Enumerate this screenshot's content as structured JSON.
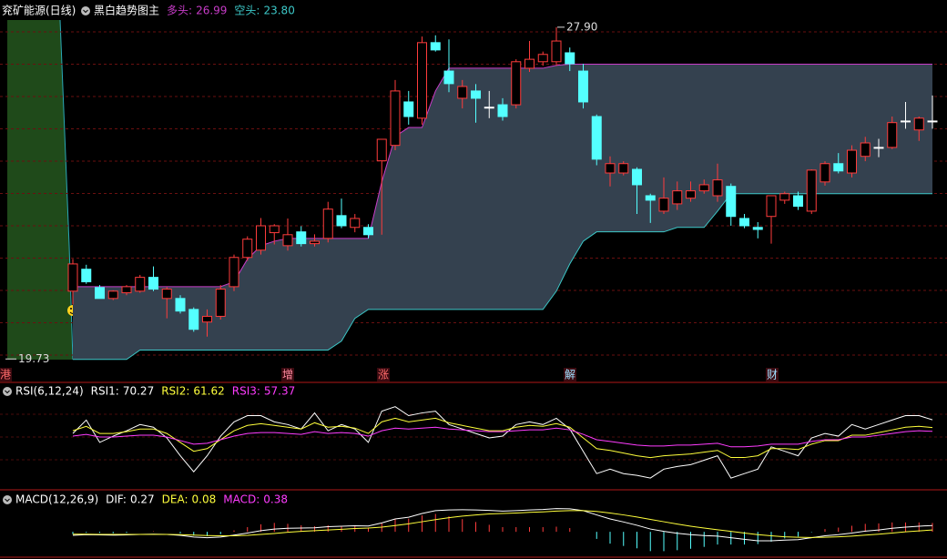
{
  "header": {
    "title": "兖矿能源(日线)"
  },
  "chart_data": [
    {
      "type": "candlestick",
      "title": "黑白趋势图主",
      "up_color": "#ff3c3c",
      "down_color": "#54ffff",
      "flat_color": "#ffffff",
      "ylim": [
        19.4,
        28.2
      ],
      "legend": [
        {
          "name": "多头:",
          "color": "#c83cc8",
          "value": 26.99
        },
        {
          "name": "空头:",
          "color": "#3cc8c8",
          "value": {
            "value": 23.8,
            "label": "23.80"
          }
        }
      ],
      "annotations": [
        {
          "value": 27.9,
          "label": "27.90"
        },
        {
          "value": 19.73,
          "label": "19.73"
        }
      ],
      "events": [
        "港",
        "增",
        "涨",
        "解",
        "财"
      ],
      "ohlc": [
        [
          21.4,
          22.19,
          21.07,
          22.07
        ],
        [
          21.94,
          22.05,
          21.58,
          21.63
        ],
        [
          21.49,
          21.55,
          21.3,
          21.22
        ],
        [
          21.22,
          21.42,
          21.18,
          21.4
        ],
        [
          21.36,
          21.55,
          21.3,
          21.51
        ],
        [
          21.4,
          21.8,
          21.36,
          21.74
        ],
        [
          21.74,
          22.01,
          21.4,
          21.45
        ],
        [
          21.22,
          21.5,
          20.73,
          21.45
        ],
        [
          21.22,
          21.3,
          20.85,
          20.91
        ],
        [
          20.95,
          21.0,
          20.4,
          20.46
        ],
        [
          20.64,
          20.95,
          20.28,
          20.78
        ],
        [
          20.78,
          21.55,
          20.7,
          21.45
        ],
        [
          21.51,
          22.3,
          21.4,
          22.23
        ],
        [
          22.23,
          22.75,
          22.15,
          22.68
        ],
        [
          22.41,
          23.2,
          22.3,
          23.01
        ],
        [
          22.84,
          23.05,
          22.55,
          23.01
        ],
        [
          22.52,
          23.19,
          22.4,
          22.79
        ],
        [
          22.86,
          23.0,
          22.5,
          22.57
        ],
        [
          22.57,
          22.8,
          22.5,
          22.63
        ],
        [
          22.7,
          23.6,
          22.6,
          23.42
        ],
        [
          23.26,
          23.68,
          22.95,
          23.01
        ],
        [
          22.97,
          23.3,
          22.85,
          23.19
        ],
        [
          22.97,
          23.05,
          22.7,
          22.79
        ],
        [
          24.61,
          25.14,
          22.79,
          25.14
        ],
        [
          24.99,
          26.6,
          24.87,
          26.33
        ],
        [
          26.06,
          26.33,
          25.5,
          25.7
        ],
        [
          25.66,
          27.67,
          25.5,
          27.52
        ],
        [
          27.52,
          27.7,
          27.3,
          27.34
        ],
        [
          26.82,
          27.6,
          26.3,
          26.51
        ],
        [
          26.15,
          26.6,
          25.9,
          26.44
        ],
        [
          26.33,
          26.5,
          25.55,
          26.15
        ],
        [
          25.93,
          26.33,
          25.66,
          25.93
        ],
        [
          25.99,
          26.15,
          25.6,
          25.7
        ],
        [
          25.99,
          27.11,
          25.9,
          27.05
        ],
        [
          26.89,
          27.56,
          26.8,
          27.11
        ],
        [
          27.05,
          27.3,
          26.95,
          27.23
        ],
        [
          27.05,
          27.9,
          26.95,
          27.56
        ],
        [
          27.27,
          27.4,
          26.82,
          27.0
        ],
        [
          26.82,
          27.0,
          25.9,
          26.06
        ],
        [
          25.7,
          25.75,
          24.5,
          24.65
        ],
        [
          24.31,
          24.72,
          23.98,
          24.54
        ],
        [
          24.31,
          24.6,
          24.25,
          24.54
        ],
        [
          24.4,
          24.45,
          23.3,
          24.02
        ],
        [
          23.75,
          23.8,
          23.08,
          23.64
        ],
        [
          23.37,
          24.2,
          23.3,
          23.69
        ],
        [
          23.55,
          24.1,
          23.4,
          23.87
        ],
        [
          23.69,
          24.1,
          23.6,
          23.87
        ],
        [
          23.87,
          24.15,
          23.8,
          24.02
        ],
        [
          23.75,
          24.54,
          23.6,
          24.14
        ],
        [
          23.98,
          24.05,
          23.01,
          23.24
        ],
        [
          23.19,
          23.3,
          22.95,
          23.01
        ],
        [
          22.97,
          23.1,
          22.7,
          22.92
        ],
        [
          23.24,
          23.75,
          22.57,
          23.75
        ],
        [
          23.64,
          23.85,
          23.55,
          23.8
        ],
        [
          23.75,
          23.85,
          23.4,
          23.49
        ],
        [
          23.37,
          24.4,
          23.3,
          24.38
        ],
        [
          24.09,
          24.6,
          24.0,
          24.54
        ],
        [
          24.54,
          24.8,
          24.3,
          24.36
        ],
        [
          24.31,
          24.99,
          24.2,
          24.87
        ],
        [
          24.72,
          25.2,
          24.6,
          25.05
        ],
        [
          24.94,
          25.15,
          24.7,
          24.94
        ],
        [
          24.94,
          25.7,
          24.9,
          25.55
        ],
        [
          25.59,
          26.06,
          25.4,
          25.59
        ],
        [
          25.37,
          25.7,
          25.1,
          25.66
        ],
        [
          25.59,
          26.22,
          25.4,
          25.59
        ]
      ],
      "band": {
        "upper": [
          21.51,
          21.51,
          21.51,
          21.51,
          21.51,
          21.51,
          21.51,
          21.51,
          21.51,
          21.51,
          21.51,
          21.51,
          21.63,
          22.19,
          22.52,
          22.63,
          22.7,
          22.7,
          22.7,
          22.7,
          22.7,
          22.7,
          22.7,
          24.09,
          25.21,
          25.43,
          25.43,
          26.33,
          26.89,
          26.89,
          26.89,
          26.89,
          26.89,
          26.89,
          26.89,
          26.89,
          26.96,
          26.99,
          26.99,
          26.99,
          26.99,
          26.99,
          26.99,
          26.99,
          26.99,
          26.99,
          26.99,
          26.99,
          26.99,
          26.99,
          26.99,
          26.99,
          26.99,
          26.99,
          26.99,
          26.99,
          26.99,
          26.99,
          26.99,
          26.99,
          26.99,
          26.99,
          26.99,
          26.99,
          26.99
        ],
        "lower": [
          19.72,
          19.72,
          19.72,
          19.72,
          19.72,
          19.95,
          19.95,
          19.95,
          19.95,
          19.95,
          19.95,
          19.95,
          19.95,
          19.95,
          19.95,
          19.95,
          19.95,
          19.95,
          19.95,
          19.95,
          20.17,
          20.73,
          20.95,
          20.95,
          20.95,
          20.95,
          20.95,
          20.95,
          20.95,
          20.95,
          20.95,
          20.95,
          20.95,
          20.95,
          20.95,
          20.95,
          21.4,
          22.07,
          22.63,
          22.86,
          22.86,
          22.86,
          22.86,
          22.86,
          22.86,
          22.97,
          22.97,
          22.97,
          23.37,
          23.8,
          23.8,
          23.8,
          23.8,
          23.8,
          23.8,
          23.8,
          23.8,
          23.8,
          23.8,
          23.8,
          23.8,
          23.8,
          23.8,
          23.8,
          23.8
        ]
      }
    },
    {
      "type": "line",
      "title": "RSI(6,12,24)",
      "ylim": [
        0,
        100
      ],
      "series": [
        {
          "name": "RSI1:",
          "color": "#ffffff",
          "values": [
            55,
            70,
            45,
            52,
            58,
            65,
            62,
            50,
            30,
            12,
            30,
            52,
            68,
            75,
            75,
            68,
            65,
            60,
            78,
            58,
            65,
            60,
            45,
            80,
            85,
            75,
            78,
            80,
            65,
            60,
            55,
            50,
            52,
            65,
            68,
            65,
            72,
            60,
            35,
            10,
            15,
            10,
            8,
            5,
            15,
            18,
            20,
            25,
            30,
            5,
            10,
            15,
            40,
            35,
            30,
            50,
            55,
            52,
            65,
            60,
            65,
            70,
            75,
            75,
            70.27
          ]
        },
        {
          "name": "RSI2:",
          "color": "#ffff3c",
          "values": [
            58,
            63,
            55,
            55,
            57,
            60,
            60,
            55,
            45,
            35,
            38,
            48,
            58,
            64,
            66,
            64,
            62,
            60,
            67,
            62,
            63,
            61,
            55,
            68,
            72,
            68,
            70,
            72,
            67,
            64,
            61,
            58,
            58,
            62,
            64,
            63,
            66,
            62,
            50,
            38,
            36,
            33,
            30,
            28,
            30,
            31,
            32,
            34,
            36,
            28,
            28,
            30,
            38,
            38,
            37,
            43,
            47,
            47,
            53,
            53,
            56,
            59,
            62,
            63,
            61.62
          ]
        },
        {
          "name": "RSI3:",
          "color": "#ff3cff",
          "values": [
            52,
            54,
            51,
            51,
            52,
            53,
            53,
            51,
            47,
            43,
            44,
            48,
            52,
            55,
            56,
            56,
            55,
            54,
            57,
            55,
            56,
            55,
            52,
            58,
            61,
            60,
            61,
            62,
            60,
            59,
            58,
            57,
            57,
            58,
            59,
            59,
            61,
            59,
            54,
            48,
            46,
            44,
            42,
            41,
            41,
            42,
            42,
            43,
            44,
            40,
            40,
            41,
            43,
            43,
            43,
            46,
            48,
            48,
            51,
            51,
            53,
            55,
            57,
            58,
            57.37
          ]
        }
      ]
    },
    {
      "type": "macd",
      "title": "MACD(12,26,9)",
      "ylim": [
        -1.0,
        1.4
      ],
      "up_color": "#ff3c3c",
      "down_color": "#54ffff",
      "series": [
        {
          "name": "DIF:",
          "color": "#ffffff",
          "values": [
            -0.15,
            -0.12,
            -0.13,
            -0.14,
            -0.13,
            -0.11,
            -0.1,
            -0.11,
            -0.15,
            -0.22,
            -0.25,
            -0.22,
            -0.14,
            -0.05,
            0.05,
            0.12,
            0.15,
            0.16,
            0.17,
            0.22,
            0.24,
            0.26,
            0.25,
            0.38,
            0.55,
            0.62,
            0.78,
            0.9,
            0.93,
            0.94,
            0.93,
            0.91,
            0.88,
            0.9,
            0.93,
            0.95,
            0.99,
            0.98,
            0.9,
            0.72,
            0.55,
            0.42,
            0.28,
            0.12,
            0.02,
            -0.06,
            -0.12,
            -0.16,
            -0.18,
            -0.25,
            -0.32,
            -0.38,
            -0.38,
            -0.35,
            -0.33,
            -0.25,
            -0.17,
            -0.12,
            -0.05,
            0.03,
            0.08,
            0.15,
            0.2,
            0.24,
            0.27
          ]
        },
        {
          "name": "DEA:",
          "color": "#ffff3c",
          "values": [
            -0.1,
            -0.1,
            -0.11,
            -0.11,
            -0.11,
            -0.11,
            -0.11,
            -0.11,
            -0.12,
            -0.14,
            -0.16,
            -0.17,
            -0.17,
            -0.15,
            -0.11,
            -0.07,
            -0.02,
            0.02,
            0.05,
            0.08,
            0.11,
            0.14,
            0.16,
            0.2,
            0.27,
            0.34,
            0.43,
            0.52,
            0.6,
            0.67,
            0.72,
            0.76,
            0.78,
            0.8,
            0.83,
            0.85,
            0.88,
            0.9,
            0.9,
            0.87,
            0.8,
            0.72,
            0.63,
            0.53,
            0.43,
            0.33,
            0.24,
            0.16,
            0.09,
            0.02,
            -0.05,
            -0.12,
            -0.17,
            -0.21,
            -0.23,
            -0.24,
            -0.23,
            -0.21,
            -0.18,
            -0.14,
            -0.1,
            -0.05,
            0.0,
            0.04,
            0.08
          ]
        },
        {
          "name": "MACD:",
          "color": "#ff3cff",
          "values": [
            -0.1,
            -0.04,
            -0.04,
            -0.06,
            -0.04,
            0.0,
            0.02,
            0.0,
            -0.06,
            -0.16,
            -0.18,
            -0.1,
            0.06,
            0.2,
            0.32,
            0.38,
            0.34,
            0.28,
            0.24,
            0.28,
            0.26,
            0.24,
            0.18,
            0.36,
            0.56,
            0.56,
            0.7,
            0.76,
            0.66,
            0.54,
            0.42,
            0.3,
            0.2,
            0.2,
            0.2,
            0.2,
            0.22,
            0.16,
            0.0,
            -0.3,
            -0.5,
            -0.6,
            -0.7,
            -0.82,
            -0.82,
            -0.78,
            -0.72,
            -0.64,
            -0.54,
            -0.54,
            -0.54,
            -0.52,
            -0.42,
            -0.28,
            -0.2,
            -0.02,
            0.12,
            0.18,
            0.26,
            0.34,
            0.36,
            0.4,
            0.4,
            0.4,
            0.38
          ]
        }
      ]
    }
  ]
}
